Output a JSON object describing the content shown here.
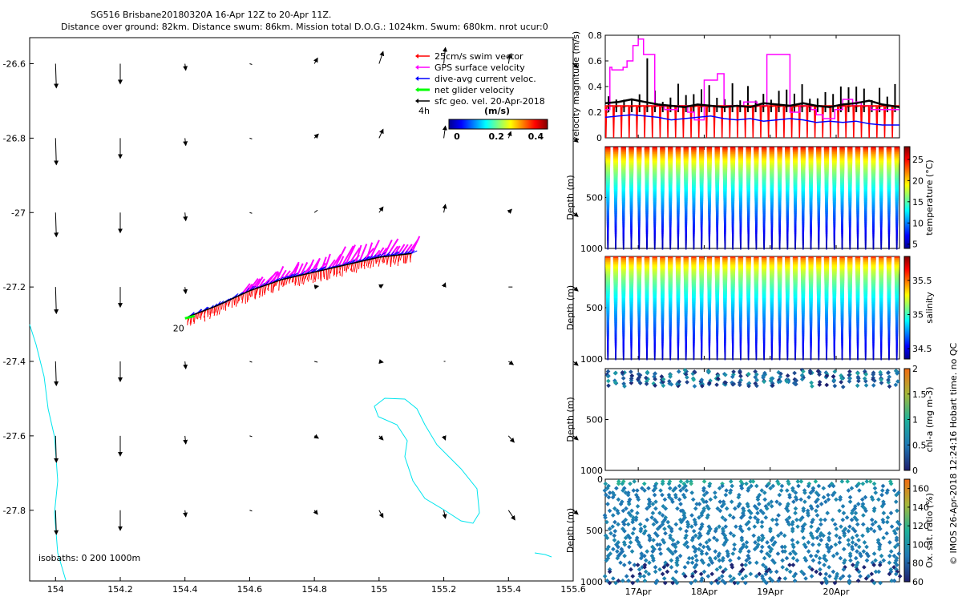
{
  "header": {
    "line1": "SG516 Brisbane20180320A 16-Apr 12Z to 20-Apr 11Z.",
    "line2": "Distance over ground: 82km. Distance swum: 86km. Mission total D.O.G.: 1024km. Swum: 680km. nrot ucur:0"
  },
  "footer": {
    "credit": "© IMOS 26-Apr-2018 12:24:16 Hobart time. no QC"
  },
  "colors": {
    "swim": "#ff0000",
    "gps": "#ff00ff",
    "dive_avg": "#0000ff",
    "net": "#00ff00",
    "geo": "#000000",
    "coast": "#00e5ee"
  },
  "chart_data": [
    {
      "type": "scatter",
      "name": "map",
      "xlim": [
        153.92,
        155.6
      ],
      "ylim": [
        -27.99,
        -26.53
      ],
      "x_ticks": [
        "154",
        "154.2",
        "154.4",
        "154.6",
        "154.8",
        "155",
        "155.2",
        "155.4",
        "155.6"
      ],
      "x_tick_values": [
        154,
        154.2,
        154.4,
        154.6,
        154.8,
        155,
        155.2,
        155.4,
        155.6
      ],
      "y_ticks": [
        "-26.6",
        "-26.8",
        "-27",
        "-27.2",
        "-27.4",
        "-27.6",
        "-27.8"
      ],
      "y_tick_values": [
        -26.6,
        -26.8,
        -27,
        -27.2,
        -27.4,
        -27.6,
        -27.8
      ],
      "legend": {
        "items": [
          {
            "label": "25cm/s swim vector",
            "color": "#ff0000"
          },
          {
            "label": "GPS surface velocity",
            "color": "#ff00ff"
          },
          {
            "label": "dive-avg current veloc.",
            "color": "#0000ff"
          },
          {
            "label": "net glider velocity",
            "color": "#00ff00"
          },
          {
            "label": "sfc geo. vel. 20-Apr-2018",
            "color": "#000000"
          }
        ],
        "note": "4h",
        "colorbar_label": "(m/s)",
        "colorbar_ticks": [
          "0",
          "0.2",
          "0.4"
        ],
        "colorbar_values": [
          0,
          0.2,
          0.4
        ],
        "colorbar_range": [
          0,
          0.5
        ]
      },
      "isobaths_label": "isobaths: 0   200  1000m",
      "start_label": "20",
      "track": [
        [
          154.41,
          -27.28
        ],
        [
          154.5,
          -27.25
        ],
        [
          154.6,
          -27.21
        ],
        [
          154.7,
          -27.18
        ],
        [
          154.8,
          -27.16
        ],
        [
          154.9,
          -27.14
        ],
        [
          155.0,
          -27.12
        ],
        [
          155.1,
          -27.11
        ]
      ],
      "geo_vectors_note": "grid of surface geostrophic velocity arrows, 0.2 deg spacing"
    },
    {
      "type": "line",
      "name": "velocity",
      "ylabel": "velocity magnitude (m/s)",
      "ylim": [
        0,
        0.8
      ],
      "y_ticks": [
        "0",
        "0.2",
        "0.4",
        "0.6",
        "0.8"
      ],
      "y_tick_values": [
        0,
        0.2,
        0.4,
        0.6,
        0.8
      ],
      "xlim": [
        16.5,
        20.96
      ],
      "series": [
        {
          "color": "#ff00ff",
          "x": [
            16.5,
            16.57,
            16.6,
            16.77,
            16.83,
            16.92,
            17.0,
            17.08,
            17.25,
            17.4,
            17.6,
            17.75,
            17.85,
            18.0,
            18.2,
            18.3,
            18.6,
            18.8,
            18.95,
            19.3,
            19.45,
            19.62,
            19.7,
            19.8,
            19.98,
            20.1,
            20.25,
            20.3,
            20.38,
            20.53,
            20.96
          ],
          "values": [
            0.22,
            0.55,
            0.53,
            0.55,
            0.6,
            0.72,
            0.77,
            0.65,
            0.25,
            0.22,
            0.25,
            0.2,
            0.14,
            0.45,
            0.5,
            0.25,
            0.28,
            0.25,
            0.65,
            0.2,
            0.25,
            0.22,
            0.18,
            0.15,
            0.22,
            0.3,
            0.25,
            0.28,
            0.25,
            0.22,
            0.22
          ]
        },
        {
          "color": "#0000ff",
          "x": [
            16.5,
            16.7,
            16.9,
            17.1,
            17.3,
            17.5,
            17.7,
            17.9,
            18.1,
            18.3,
            18.5,
            18.7,
            18.9,
            19.1,
            19.3,
            19.5,
            19.7,
            19.9,
            20.1,
            20.3,
            20.5,
            20.7,
            20.96
          ],
          "values": [
            0.16,
            0.17,
            0.18,
            0.17,
            0.16,
            0.14,
            0.15,
            0.16,
            0.17,
            0.15,
            0.14,
            0.15,
            0.13,
            0.14,
            0.15,
            0.14,
            0.12,
            0.13,
            0.12,
            0.13,
            0.11,
            0.1,
            0.1
          ]
        },
        {
          "color": "#ff0000",
          "x": [
            16.5,
            16.7,
            16.9,
            17.1,
            17.3,
            17.5,
            17.7,
            17.9,
            18.1,
            18.3,
            18.5,
            18.7,
            18.9,
            19.1,
            19.3,
            19.5,
            19.7,
            19.9,
            20.1,
            20.3,
            20.5,
            20.7,
            20.96
          ],
          "values": [
            0.25,
            0.25,
            0.25,
            0.25,
            0.25,
            0.25,
            0.25,
            0.25,
            0.25,
            0.25,
            0.25,
            0.25,
            0.25,
            0.25,
            0.25,
            0.25,
            0.25,
            0.25,
            0.25,
            0.25,
            0.25,
            0.25,
            0.25
          ]
        },
        {
          "color": "#000000",
          "x": [
            16.5,
            16.7,
            16.9,
            17.1,
            17.3,
            17.5,
            17.7,
            17.9,
            18.1,
            18.3,
            18.5,
            18.7,
            18.9,
            19.1,
            19.3,
            19.5,
            19.7,
            19.9,
            20.1,
            20.3,
            20.5,
            20.7,
            20.96
          ],
          "values": [
            0.27,
            0.28,
            0.3,
            0.28,
            0.26,
            0.25,
            0.24,
            0.26,
            0.25,
            0.24,
            0.25,
            0.24,
            0.27,
            0.26,
            0.25,
            0.27,
            0.25,
            0.24,
            0.26,
            0.27,
            0.29,
            0.26,
            0.24
          ]
        }
      ]
    },
    {
      "type": "scatter",
      "name": "temperature",
      "ylabel": "Depth (m)",
      "ylim": [
        1000,
        0
      ],
      "y_ticks": [
        "500",
        "1000"
      ],
      "y_tick_values": [
        500,
        1000
      ],
      "colorbar_label": "temperature (°C)",
      "colorbar_ticks": [
        "5",
        "10",
        "15",
        "20",
        "25"
      ],
      "colorbar_values": [
        5,
        10,
        15,
        20,
        25
      ],
      "colorbar_range": [
        4,
        28
      ],
      "surface_value": 26,
      "bottom_value": 5,
      "dive_count": 38
    },
    {
      "type": "scatter",
      "name": "salinity",
      "ylabel": "Depth (m)",
      "ylim": [
        1000,
        0
      ],
      "y_ticks": [
        "500",
        "1000"
      ],
      "y_tick_values": [
        500,
        1000
      ],
      "colorbar_label": "salinity",
      "colorbar_ticks": [
        "34.5",
        "35",
        "35.5"
      ],
      "colorbar_values": [
        34.5,
        35,
        35.5
      ],
      "colorbar_range": [
        34.35,
        35.85
      ],
      "surface_value": 35.6,
      "bottom_value": 34.45,
      "dive_count": 38
    },
    {
      "type": "scatter",
      "name": "chlorophyll",
      "ylabel": "Depth (m)",
      "ylim": [
        1000,
        0
      ],
      "y_ticks": [
        "500",
        "1000"
      ],
      "y_tick_values": [
        500,
        1000
      ],
      "colorbar_label": "chl-a (mg m-3)",
      "colorbar_ticks": [
        "0",
        "0.5",
        "1",
        "1.5",
        "2"
      ],
      "colorbar_values": [
        0,
        0.5,
        1,
        1.5,
        2
      ],
      "colorbar_range": [
        0,
        2
      ],
      "profile_max_depth": 150
    },
    {
      "type": "scatter",
      "name": "oxygen",
      "ylabel": "Depth (m)",
      "ylim": [
        1000,
        0
      ],
      "y_ticks": [
        "0",
        "500",
        "1000"
      ],
      "y_tick_values": [
        0,
        500,
        1000
      ],
      "colorbar_label": "Ox. sat. ratio (%)",
      "colorbar_ticks": [
        "60",
        "80",
        "100",
        "120",
        "140",
        "160"
      ],
      "colorbar_values": [
        60,
        80,
        100,
        120,
        140,
        160
      ],
      "colorbar_range": [
        60,
        170
      ],
      "x_ticks": [
        "17Apr",
        "18Apr",
        "19Apr",
        "20Apr"
      ],
      "x_tick_values": [
        17,
        18,
        19,
        20
      ],
      "xlim": [
        16.5,
        20.96
      ]
    }
  ]
}
